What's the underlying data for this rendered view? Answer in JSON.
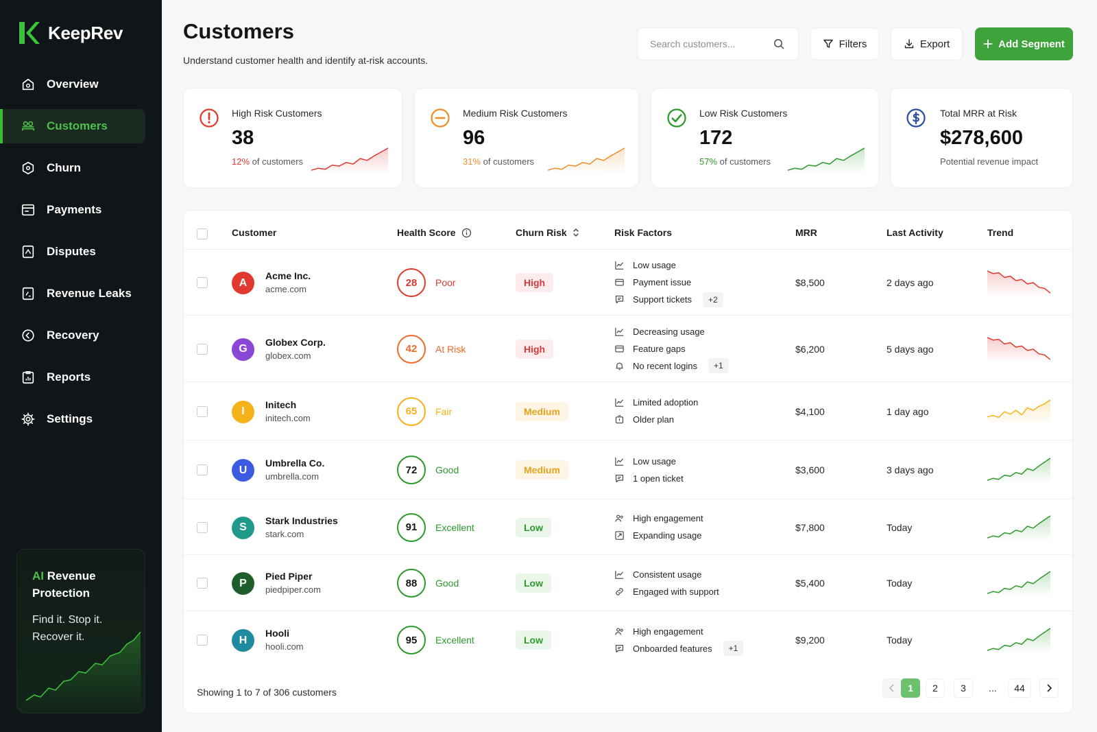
{
  "brand": {
    "name": "KeepRev"
  },
  "colors": {
    "accent": "#3fa33c",
    "sidebar": "#0f1518",
    "danger": "#e0392f",
    "warning": "#f08c28",
    "caution": "#f5b219",
    "success": "#2c9a2a"
  },
  "nav": [
    {
      "label": "Overview",
      "icon": "home-icon"
    },
    {
      "label": "Customers",
      "icon": "users-icon",
      "active": true
    },
    {
      "label": "Churn",
      "icon": "hexagon-icon"
    },
    {
      "label": "Payments",
      "icon": "payments-icon"
    },
    {
      "label": "Disputes",
      "icon": "disputes-icon"
    },
    {
      "label": "Revenue Leaks",
      "icon": "leak-icon"
    },
    {
      "label": "Recovery",
      "icon": "recovery-icon"
    },
    {
      "label": "Reports",
      "icon": "reports-icon"
    },
    {
      "label": "Settings",
      "icon": "gear-icon"
    }
  ],
  "ai_card": {
    "ai": "AI",
    "title_rest": " Revenue Protection",
    "subtitle": "Find it. Stop it. Recover it."
  },
  "header": {
    "title": "Customers",
    "subtitle": "Understand customer health and identify at-risk accounts.",
    "search_placeholder": "Search customers...",
    "filters_label": "Filters",
    "export_label": "Export",
    "add_label": "Add Segment"
  },
  "kpis": [
    {
      "label": "High Risk Customers",
      "value": "38",
      "pct": "12%",
      "note": " of customers",
      "color": "#e0392f",
      "icon": "alert-icon"
    },
    {
      "label": "Medium Risk Customers",
      "value": "96",
      "pct": "31%",
      "note": " of customers",
      "color": "#f08c28",
      "icon": "minus-circle-icon"
    },
    {
      "label": "Low Risk Customers",
      "value": "172",
      "pct": "57%",
      "note": " of customers",
      "color": "#2c9a2a",
      "icon": "check-circle-icon"
    },
    {
      "label": "Total MRR at Risk",
      "value": "$278,600",
      "pct": "",
      "note": "Potential revenue impact",
      "color": "#2a4fa0",
      "icon": "dollar-icon"
    }
  ],
  "table": {
    "headers": {
      "customer": "Customer",
      "health": "Health Score",
      "churn": "Churn Risk",
      "factors": "Risk Factors",
      "mrr": "MRR",
      "activity": "Last Activity",
      "trend": "Trend"
    },
    "rows": [
      {
        "initial": "A",
        "avatar_color": "#e0392f",
        "name": "Acme Inc.",
        "domain": "acme.com",
        "score": "28",
        "score_label": "Poor",
        "score_color": "#e0392f",
        "risk": "High",
        "risk_color": "#d63a3a",
        "risk_bg": "#fdeceb",
        "factors": [
          {
            "icon": "chart-icon",
            "text": "Low usage"
          },
          {
            "icon": "card-icon",
            "text": "Payment issue"
          },
          {
            "icon": "chat-icon",
            "text": "Support tickets",
            "more": "+2"
          }
        ],
        "mrr": "$8,500",
        "activity": "2 days ago",
        "trend_dir": "down",
        "trend_color": "#e0392f"
      },
      {
        "initial": "G",
        "avatar_color": "#8a47d6",
        "name": "Globex Corp.",
        "domain": "globex.com",
        "score": "42",
        "score_label": "At Risk",
        "score_color": "#ee6a2a",
        "risk": "High",
        "risk_color": "#d63a3a",
        "risk_bg": "#fdeceb",
        "factors": [
          {
            "icon": "chart-icon",
            "text": "Decreasing usage"
          },
          {
            "icon": "card-icon",
            "text": "Feature gaps"
          },
          {
            "icon": "bell-icon",
            "text": "No recent logins",
            "more": "+1"
          }
        ],
        "mrr": "$6,200",
        "activity": "5 days ago",
        "trend_dir": "down",
        "trend_color": "#e0392f"
      },
      {
        "initial": "I",
        "avatar_color": "#f5b219",
        "name": "Initech",
        "domain": "initech.com",
        "score": "65",
        "score_label": "Fair",
        "score_color": "#f5b219",
        "risk": "Medium",
        "risk_color": "#e8a21c",
        "risk_bg": "#fef5e4",
        "factors": [
          {
            "icon": "chart-icon",
            "text": "Limited adoption"
          },
          {
            "icon": "box-icon",
            "text": "Older plan"
          }
        ],
        "mrr": "$4,100",
        "activity": "1 day ago",
        "trend_dir": "mixed",
        "trend_color": "#f5b219"
      },
      {
        "initial": "U",
        "avatar_color": "#3b5ce0",
        "name": "Umbrella Co.",
        "domain": "umbrella.com",
        "score": "72",
        "score_label": "Good",
        "score_color": "#2c9a2a",
        "risk": "Medium",
        "risk_color": "#e8a21c",
        "risk_bg": "#fef5e4",
        "factors": [
          {
            "icon": "chart-icon",
            "text": "Low usage"
          },
          {
            "icon": "chat-icon",
            "text": "1 open ticket"
          }
        ],
        "mrr": "$3,600",
        "activity": "3 days ago",
        "trend_dir": "up",
        "trend_color": "#2c9a2a"
      },
      {
        "initial": "S",
        "avatar_color": "#1f9a8a",
        "name": "Stark Industries",
        "domain": "stark.com",
        "score": "91",
        "score_label": "Excellent",
        "score_color": "#2c9a2a",
        "risk": "Low",
        "risk_color": "#2c9a2a",
        "risk_bg": "#eaf6ea",
        "factors": [
          {
            "icon": "users-small-icon",
            "text": "High engagement"
          },
          {
            "icon": "expand-icon",
            "text": "Expanding usage"
          }
        ],
        "mrr": "$7,800",
        "activity": "Today",
        "trend_dir": "up",
        "trend_color": "#2c9a2a"
      },
      {
        "initial": "P",
        "avatar_color": "#1d5e2c",
        "name": "Pied Piper",
        "domain": "piedpiper.com",
        "score": "88",
        "score_label": "Good",
        "score_color": "#2c9a2a",
        "risk": "Low",
        "risk_color": "#2c9a2a",
        "risk_bg": "#eaf6ea",
        "factors": [
          {
            "icon": "chart-icon",
            "text": "Consistent usage"
          },
          {
            "icon": "link-icon",
            "text": "Engaged with support"
          }
        ],
        "mrr": "$5,400",
        "activity": "Today",
        "trend_dir": "up",
        "trend_color": "#2c9a2a"
      },
      {
        "initial": "H",
        "avatar_color": "#1f8aa0",
        "name": "Hooli",
        "domain": "hooli.com",
        "score": "95",
        "score_label": "Excellent",
        "score_color": "#2c9a2a",
        "risk": "Low",
        "risk_color": "#2c9a2a",
        "risk_bg": "#eaf6ea",
        "factors": [
          {
            "icon": "users-small-icon",
            "text": "High engagement"
          },
          {
            "icon": "chat-icon",
            "text": "Onboarded features",
            "more": "+1"
          }
        ],
        "mrr": "$9,200",
        "activity": "Today",
        "trend_dir": "up",
        "trend_color": "#2c9a2a"
      }
    ],
    "footer": "Showing 1 to 7 of 306 customers",
    "pagination": [
      "1",
      "2",
      "3",
      "...",
      "44"
    ]
  }
}
